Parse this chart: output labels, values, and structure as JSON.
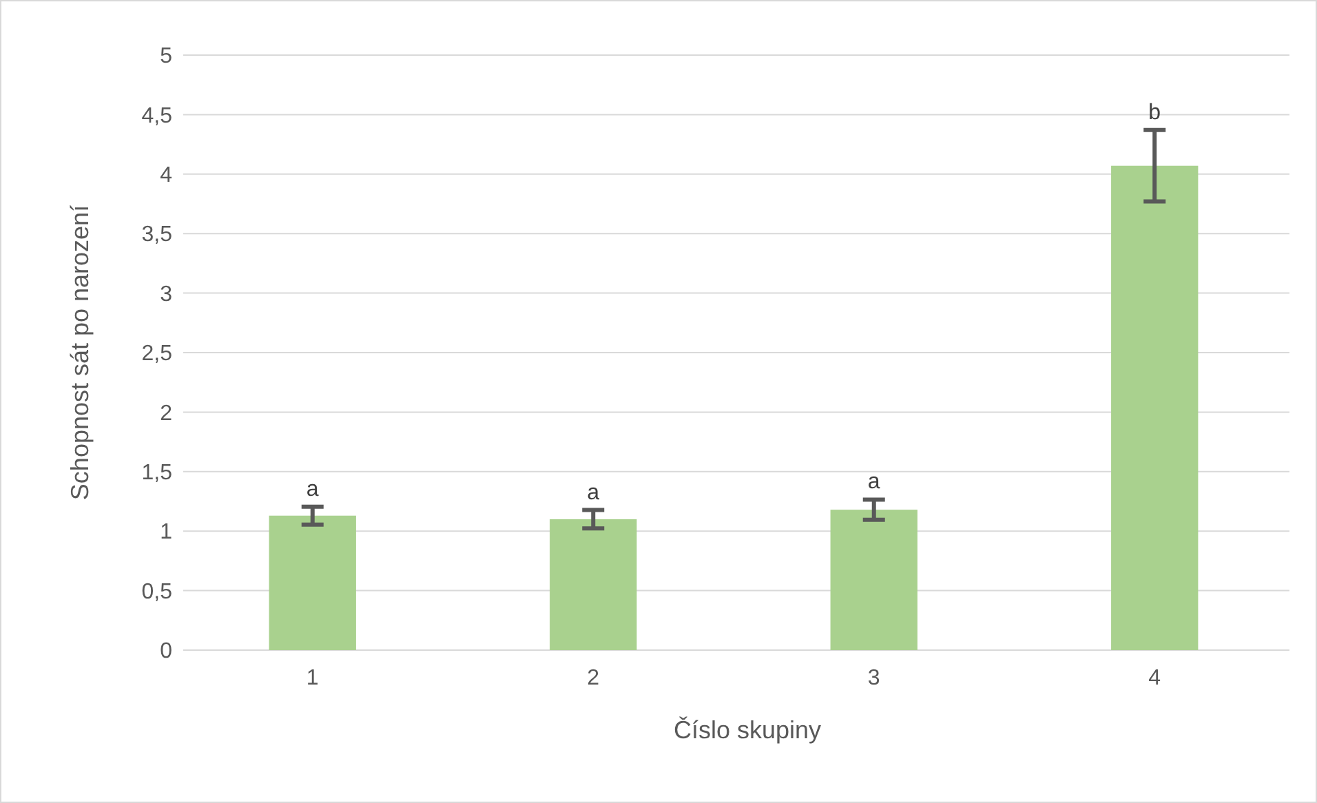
{
  "chart_data": {
    "type": "bar",
    "xlabel": "Číslo skupiny",
    "ylabel": "Schopnost sát po narození",
    "categories": [
      "1",
      "2",
      "3",
      "4"
    ],
    "values": [
      1.13,
      1.1,
      1.18,
      4.07
    ],
    "errors": [
      0.075,
      0.077,
      0.085,
      0.3
    ],
    "color": "#a9d18e",
    "ylim": [
      0,
      5
    ],
    "yticks": [
      {
        "value": 0,
        "label": "0"
      },
      {
        "value": 0.5,
        "label": "0,5"
      },
      {
        "value": 1,
        "label": "1"
      },
      {
        "value": 1.5,
        "label": "1,5"
      },
      {
        "value": 2,
        "label": "2"
      },
      {
        "value": 2.5,
        "label": "2,5"
      },
      {
        "value": 3,
        "label": "3"
      },
      {
        "value": 3.5,
        "label": "3,5"
      },
      {
        "value": 4,
        "label": "4"
      },
      {
        "value": 4.5,
        "label": "4,5"
      },
      {
        "value": 5,
        "label": "5"
      }
    ],
    "grid": "y",
    "annotations": [
      {
        "text": "a",
        "x": "1",
        "y": 1.205
      },
      {
        "text": "a",
        "x": "2",
        "y": 1.177
      },
      {
        "text": "a",
        "x": "3",
        "y": 1.265
      },
      {
        "text": "b",
        "x": "4",
        "y": 4.37
      }
    ]
  }
}
